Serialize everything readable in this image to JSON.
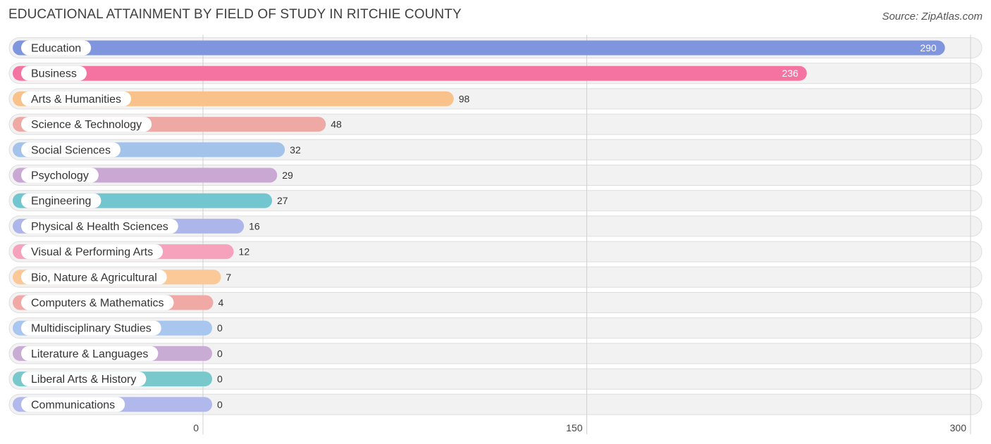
{
  "header": {
    "title": "EDUCATIONAL ATTAINMENT BY FIELD OF STUDY IN RITCHIE COUNTY",
    "source": "Source: ZipAtlas.com"
  },
  "chart_data": {
    "type": "bar",
    "orientation": "horizontal",
    "title": "EDUCATIONAL ATTAINMENT BY FIELD OF STUDY IN RITCHIE COUNTY",
    "xlabel": "",
    "ylabel": "",
    "xlim": [
      0,
      300
    ],
    "ticks": [
      0,
      150,
      300
    ],
    "tick_labels": [
      "0",
      "150",
      "300"
    ],
    "grid": true,
    "categories": [
      "Education",
      "Business",
      "Arts & Humanities",
      "Science & Technology",
      "Social Sciences",
      "Psychology",
      "Engineering",
      "Physical & Health Sciences",
      "Visual & Performing Arts",
      "Bio, Nature & Agricultural",
      "Computers & Mathematics",
      "Multidisciplinary Studies",
      "Literature & Languages",
      "Liberal Arts & History",
      "Communications"
    ],
    "values": [
      290,
      236,
      98,
      48,
      32,
      29,
      27,
      16,
      12,
      7,
      4,
      0,
      0,
      0,
      0
    ],
    "colors": [
      "#7f95de",
      "#f573a0",
      "#f9c28a",
      "#eea9a4",
      "#a4c3eb",
      "#c9a9d4",
      "#72c6cf",
      "#adb6ea",
      "#f7a2bd",
      "#fac997",
      "#f1a9a6",
      "#a9c6ee",
      "#c9acd4",
      "#79c8cc",
      "#b0b8ec"
    ]
  }
}
